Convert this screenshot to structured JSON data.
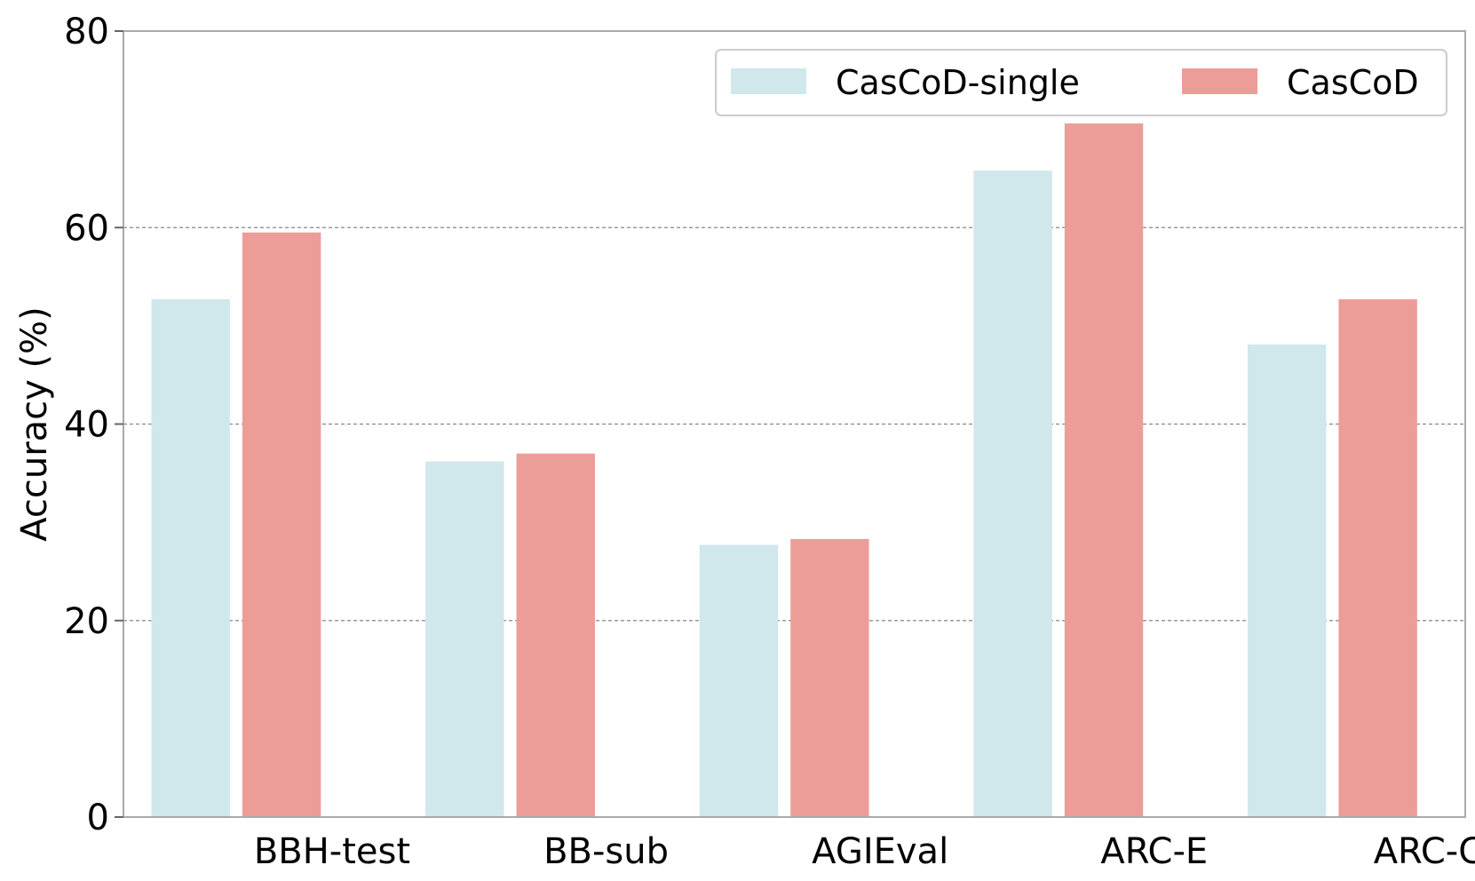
{
  "chart_data": {
    "type": "bar",
    "title": "",
    "xlabel": "",
    "ylabel": "Accuracy (%)",
    "categories": [
      "BBH-test",
      "BB-sub",
      "AGIEval",
      "ARC-E",
      "ARC-C"
    ],
    "series": [
      {
        "name": "CasCoD-single",
        "color": "#d0e7ec",
        "values": [
          52.7,
          36.2,
          27.7,
          65.8,
          48.1
        ]
      },
      {
        "name": "CasCoD",
        "color": "#ec9d98",
        "values": [
          59.5,
          37.0,
          28.3,
          70.6,
          52.7
        ]
      }
    ],
    "ylim": [
      0,
      80
    ],
    "yticks": [
      0,
      20,
      40,
      60,
      80
    ],
    "grid": "horizontal dashed at 20, 40, 60",
    "legend_position": "top-right"
  }
}
